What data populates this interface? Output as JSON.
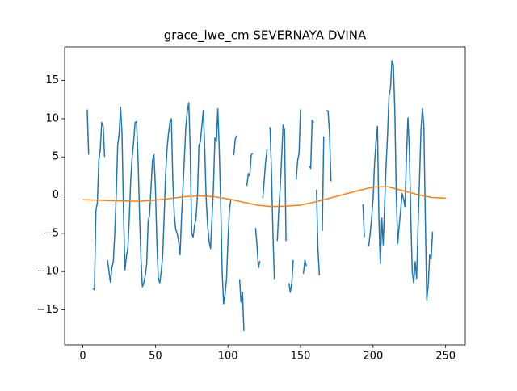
{
  "chart_data": {
    "type": "line",
    "title": "grace_lwe_cm SEVERNAYA DVINA",
    "xlim": [
      -12.55,
      263.55
    ],
    "ylim": [
      -19.6,
      19.4
    ],
    "xticks": [
      0,
      50,
      100,
      150,
      200,
      250
    ],
    "yticks": [
      {
        "value": -15,
        "label": "−15"
      },
      {
        "value": -10,
        "label": "−10"
      },
      {
        "value": -5,
        "label": "−5"
      },
      0,
      5,
      10,
      15
    ],
    "series": [
      {
        "color": "#1f77b4",
        "x": [
          3,
          4,
          5.5,
          7,
          8,
          9,
          10,
          11,
          12,
          13,
          14,
          15,
          16,
          17,
          19,
          20,
          21,
          22,
          23,
          24,
          25,
          26,
          27,
          28,
          29,
          30,
          31,
          32,
          33,
          34,
          35,
          36,
          37,
          38,
          39,
          40,
          41,
          42,
          43,
          44,
          45,
          46,
          47,
          48,
          49,
          50,
          51,
          52,
          53,
          54,
          55,
          56,
          57,
          58,
          59,
          60,
          61,
          62,
          63,
          64,
          65,
          66,
          67,
          68,
          69,
          70,
          71,
          72,
          73,
          74,
          75,
          76,
          77,
          78,
          79,
          80,
          81,
          82,
          83,
          84,
          85,
          86,
          87,
          88,
          89,
          90,
          91,
          92,
          93,
          94,
          95,
          96,
          97,
          98,
          99,
          100,
          101,
          102,
          103,
          104,
          105,
          106,
          107,
          108,
          109,
          110,
          111,
          112,
          113,
          114,
          115,
          116,
          117,
          118,
          119,
          120,
          121,
          122,
          123,
          124,
          125,
          126,
          127,
          128,
          129,
          130,
          131,
          132,
          133,
          134,
          135,
          136,
          137,
          138,
          139,
          140,
          141,
          142,
          143,
          144,
          145,
          146,
          147,
          148,
          149,
          150,
          151,
          152,
          153,
          154,
          155,
          156,
          157,
          158,
          159,
          160,
          161,
          162,
          163,
          164,
          165,
          166,
          167,
          168,
          169,
          170,
          171,
          172,
          193,
          194,
          195,
          197,
          198,
          199,
          200,
          201,
          202,
          203,
          204,
          205,
          206,
          207,
          208,
          209,
          210,
          211,
          212,
          213,
          214,
          215,
          216,
          217,
          218,
          219,
          220,
          221,
          222,
          223,
          224,
          225,
          226,
          227,
          228,
          229,
          230,
          231,
          232,
          233,
          234,
          235,
          236,
          237,
          238,
          239,
          240,
          241
        ],
        "values": [
          11.2,
          5.3,
          null,
          -12.2,
          -12.4,
          -2,
          -1,
          4.5,
          6,
          9.5,
          9,
          5,
          null,
          -8.5,
          -11.4,
          -9.5,
          -8.7,
          -5,
          0,
          6.5,
          8,
          11.5,
          8,
          -2,
          -9.8,
          -8,
          -7,
          -3,
          2,
          5,
          7,
          9.5,
          9.6,
          5,
          -2,
          -8,
          -12,
          -11.5,
          -10.5,
          -9,
          -3.5,
          -2.5,
          1,
          4.5,
          5.3,
          1,
          -6,
          -10.8,
          -11.5,
          -10,
          -8,
          -3,
          2.5,
          6,
          8,
          9.5,
          10,
          2,
          -2.5,
          -4.5,
          -5,
          -6,
          -7.8,
          -3,
          1,
          5,
          9,
          11,
          12.1,
          6,
          -5,
          -5.5,
          -4,
          -3,
          0,
          6.5,
          7,
          9,
          11.1,
          6,
          -0.5,
          -4,
          -6,
          -7,
          -3,
          1,
          7.5,
          7,
          11.3,
          6,
          -1,
          -10,
          -14.2,
          -13,
          -11,
          -6,
          -2,
          -0.5,
          null,
          5.2,
          7.3,
          7.8,
          null,
          -11,
          -14,
          -12.7,
          -17.8,
          null,
          1.2,
          2.8,
          2.5,
          5.2,
          5.5,
          null,
          -4.3,
          -6.5,
          -9.5,
          -8.6,
          null,
          -0.4,
          2,
          4.5,
          6,
          null,
          8.9,
          3,
          -5,
          -11,
          null,
          -6,
          -2,
          1,
          5,
          9.2,
          8.5,
          -6,
          null,
          -11.5,
          -12.7,
          -11.5,
          -8.5,
          null,
          2,
          4.5,
          5.5,
          11.2,
          null,
          -10.3,
          -8.5,
          -9.3,
          null,
          3.8,
          3.5,
          9.8,
          9.5,
          null,
          0.7,
          -7,
          -10.5,
          null,
          -4.7,
          7.7,
          null,
          11.1,
          11,
          8,
          1.8,
          null,
          -1.2,
          -5.5,
          null,
          -6.7,
          -5,
          -3,
          -0.5,
          4,
          7,
          9,
          -3,
          -9,
          -3,
          -6.5,
          -1,
          4,
          8,
          13,
          14,
          17.6,
          17,
          11,
          0,
          -6.3,
          -4,
          -2,
          0.2,
          -0.5,
          -1.5,
          5,
          10.1,
          6,
          -3,
          -10,
          -11.5,
          -8.7,
          -10.9,
          -4,
          2,
          8.5,
          11.3,
          9,
          -3,
          -13.7,
          -11.8,
          -7.8,
          -8.3,
          -4.8
        ]
      },
      {
        "color": "#ff7f0e",
        "x": [
          0,
          10,
          20,
          30,
          40,
          50,
          60,
          70,
          80,
          90,
          100,
          110,
          120,
          130,
          140,
          150,
          160,
          170,
          180,
          190,
          200,
          210,
          220,
          230,
          240,
          250
        ],
        "values": [
          -0.6,
          -0.65,
          -0.72,
          -0.78,
          -0.8,
          -0.65,
          -0.45,
          -0.2,
          -0.1,
          -0.2,
          -0.5,
          -0.9,
          -1.3,
          -1.5,
          -1.45,
          -1.3,
          -0.9,
          -0.4,
          0.1,
          0.6,
          1.05,
          1.1,
          0.6,
          0.1,
          -0.3,
          -0.4
        ]
      }
    ]
  }
}
